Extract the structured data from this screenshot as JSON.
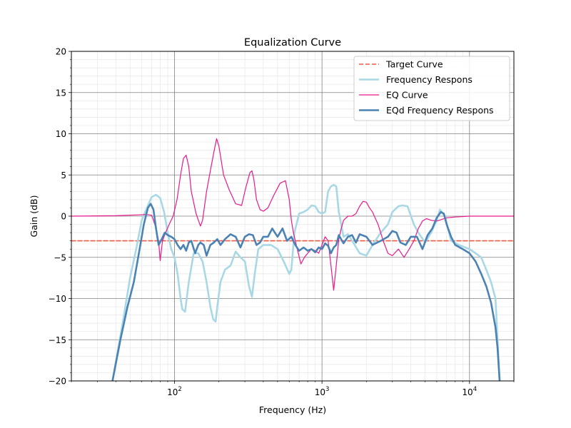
{
  "chart_data": {
    "type": "line",
    "title": "Equalization Curve",
    "xlabel": "Frequency (Hz)",
    "ylabel": "Gain (dB)",
    "xscale": "log",
    "xlim": [
      20,
      20000
    ],
    "ylim": [
      -20,
      20
    ],
    "grid": true,
    "legend_position": "top-right",
    "x_tick_labels": [
      {
        "base": "10",
        "exp": "2",
        "value": 100
      },
      {
        "base": "10",
        "exp": "3",
        "value": 1000
      },
      {
        "base": "10",
        "exp": "4",
        "value": 10000
      }
    ],
    "y_ticks": [
      -20,
      -15,
      -10,
      -5,
      0,
      5,
      10,
      15,
      20
    ],
    "y_tick_labels": [
      "−20",
      "−15",
      "−10",
      "−5",
      "0",
      "5",
      "10",
      "15",
      "20"
    ],
    "series": [
      {
        "name": "Target Curve",
        "color": "#ef5a45",
        "style": "dashed",
        "x": [
          20,
          20000
        ],
        "y": [
          -3,
          -3
        ]
      },
      {
        "name": "Frequency Respons",
        "color": "#a8d8e6",
        "style": "solid",
        "x": [
          38,
          45,
          50,
          55,
          60,
          65,
          70,
          75,
          80,
          85,
          90,
          95,
          100,
          105,
          110,
          113,
          118,
          125,
          135,
          145,
          155,
          165,
          175,
          183,
          190,
          195,
          205,
          220,
          240,
          260,
          280,
          300,
          320,
          335,
          350,
          370,
          400,
          450,
          500,
          550,
          600,
          620,
          650,
          700,
          750,
          800,
          850,
          900,
          950,
          1000,
          1050,
          1100,
          1150,
          1200,
          1250,
          1300,
          1400,
          1500,
          1600,
          1800,
          2000,
          2200,
          2500,
          2800,
          3000,
          3300,
          3500,
          3800,
          4200,
          4500,
          5000,
          5500,
          6000,
          6300,
          6800,
          7500,
          8500,
          10000,
          11000,
          12000,
          13000,
          14000,
          15000,
          15500,
          16000
        ],
        "y": [
          -20,
          -12.5,
          -7.5,
          -4,
          -0.5,
          1,
          2.3,
          2.6,
          2.2,
          0.5,
          -2,
          -4,
          -5,
          -7,
          -10,
          -11.3,
          -11.6,
          -8,
          -4.5,
          -4.5,
          -5.5,
          -8,
          -11,
          -12.5,
          -12.8,
          -11,
          -8,
          -6.5,
          -6,
          -4.3,
          -5,
          -5.5,
          -8.5,
          -9.8,
          -7,
          -4,
          -3.5,
          -3.5,
          -4,
          -5.5,
          -7,
          -6.5,
          -2,
          0.3,
          0.5,
          0.8,
          1.3,
          1.2,
          0.5,
          0.3,
          0.5,
          3,
          3.6,
          3.8,
          3.6,
          0.5,
          -2.5,
          -2.2,
          -3,
          -4.5,
          -4.8,
          -3.5,
          -2,
          -1,
          0.5,
          1.2,
          1.3,
          1.2,
          -1,
          -2,
          -3.2,
          -2,
          -0.5,
          0.8,
          0,
          -3,
          -3.5,
          -4,
          -4.5,
          -5,
          -6.5,
          -8,
          -10,
          -15,
          -20
        ]
      },
      {
        "name": "EQ Curve",
        "color": "#e8198b",
        "style": "solid",
        "x": [
          20,
          40,
          55,
          65,
          70,
          72,
          75,
          78,
          80,
          83,
          87,
          92,
          98,
          104,
          110,
          115,
          120,
          125,
          130,
          140,
          150,
          155,
          165,
          175,
          185,
          193,
          200,
          215,
          235,
          260,
          285,
          305,
          325,
          335,
          345,
          360,
          380,
          400,
          430,
          470,
          520,
          565,
          600,
          620,
          640,
          680,
          720,
          760,
          800,
          850,
          900,
          950,
          1000,
          1050,
          1100,
          1150,
          1200,
          1250,
          1300,
          1350,
          1400,
          1500,
          1600,
          1700,
          1800,
          1900,
          2000,
          2100,
          2200,
          2400,
          2600,
          2800,
          3000,
          3300,
          3600,
          3900,
          4200,
          4500,
          4800,
          5100,
          5500,
          6000,
          6500,
          7000,
          8000,
          10000,
          12000,
          15000,
          20000
        ],
        "y": [
          0,
          0.05,
          0.15,
          0.2,
          0.1,
          -0.5,
          -1.5,
          -3,
          -5.4,
          -3,
          -2,
          -1,
          0,
          2,
          5,
          7,
          7.4,
          6,
          3,
          0.3,
          -1.2,
          -0.5,
          3,
          5.5,
          7.8,
          9.4,
          8.5,
          5,
          3.2,
          1.5,
          1.3,
          3.5,
          5.3,
          5.5,
          4.5,
          2,
          0.8,
          0.6,
          1,
          2.5,
          4,
          4.3,
          2,
          -0.5,
          -2,
          -4,
          -5.8,
          -5,
          -4.5,
          -4,
          -4.2,
          -4.5,
          -3.5,
          -2.5,
          -3,
          -6,
          -9,
          -6,
          -2.8,
          -1.5,
          -0.5,
          0,
          0,
          0.3,
          1.2,
          1.8,
          1.7,
          1,
          0.5,
          -1,
          -3,
          -4.5,
          -4.8,
          -4,
          -5,
          -4,
          -3,
          -1.5,
          -0.6,
          -0.3,
          -0.5,
          -0.6,
          -0.4,
          -0.2,
          -0.1,
          0,
          0,
          0,
          0
        ]
      },
      {
        "name": "EQd Frequency Respons",
        "color": "#4a82b4",
        "style": "solid",
        "x": [
          38,
          43,
          48,
          53,
          58,
          62,
          66,
          69,
          72,
          75,
          78,
          82,
          86,
          90,
          95,
          100,
          105,
          110,
          115,
          120,
          125,
          130,
          138,
          145,
          150,
          158,
          165,
          175,
          185,
          195,
          205,
          220,
          240,
          260,
          280,
          300,
          320,
          340,
          360,
          380,
          400,
          430,
          460,
          500,
          540,
          580,
          620,
          660,
          700,
          750,
          800,
          850,
          900,
          950,
          1000,
          1050,
          1100,
          1150,
          1200,
          1250,
          1300,
          1400,
          1500,
          1600,
          1700,
          1800,
          2000,
          2200,
          2500,
          2800,
          3000,
          3200,
          3400,
          3700,
          4000,
          4400,
          4800,
          5200,
          5600,
          6000,
          6400,
          6700,
          7000,
          7500,
          8000,
          9000,
          10000,
          11000,
          12000,
          13000,
          14000,
          15000,
          15500,
          16000
        ],
        "y": [
          -20,
          -15,
          -11,
          -8,
          -4,
          -1,
          1,
          1.5,
          0.8,
          -1.5,
          -3.5,
          -2.8,
          -2,
          -2.3,
          -2.5,
          -2.8,
          -3.5,
          -4,
          -3.5,
          -4.2,
          -3.2,
          -3,
          -4.5,
          -3.5,
          -3.2,
          -3.5,
          -4.8,
          -3.5,
          -3.2,
          -2.8,
          -3.5,
          -2.8,
          -2.2,
          -2.5,
          -3.8,
          -2.5,
          -2.2,
          -2.3,
          -3.5,
          -3.2,
          -2.5,
          -2.5,
          -1.5,
          -2.5,
          -1.5,
          -3,
          -2.5,
          -3.5,
          -4.2,
          -3.8,
          -4.2,
          -4,
          -4.4,
          -3.8,
          -4,
          -3.3,
          -3.6,
          -4.5,
          -3.8,
          -3.5,
          -2.3,
          -3.3,
          -2.5,
          -2.3,
          -3.2,
          -2.2,
          -2.5,
          -3.5,
          -3,
          -2.5,
          -1.8,
          -2,
          -3.2,
          -3.5,
          -2.5,
          -2.5,
          -4,
          -2.3,
          -1.5,
          -0.2,
          0.5,
          0.3,
          -1,
          -2.5,
          -3.5,
          -4,
          -4.5,
          -5.5,
          -7,
          -8.5,
          -10.5,
          -13.5,
          -16,
          -20
        ]
      }
    ]
  }
}
